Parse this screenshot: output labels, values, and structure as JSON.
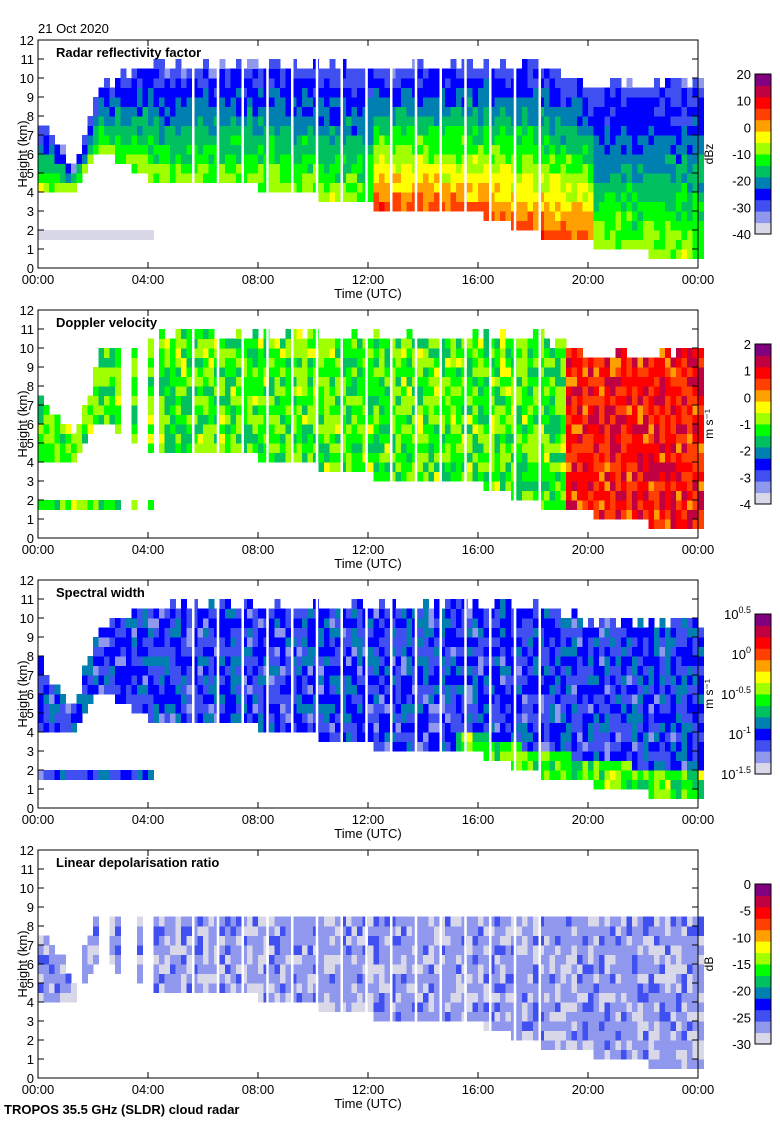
{
  "date_label": "21 Oct 2020",
  "footer": "TROPOS 35.5 GHz (SLDR) cloud radar",
  "chart_data": [
    {
      "type": "heatmap",
      "title": "Radar reflectivity factor",
      "xlabel": "Time (UTC)",
      "ylabel": "Height (km)",
      "xticks": [
        "00:00",
        "04:00",
        "08:00",
        "12:00",
        "16:00",
        "20:00",
        "00:00"
      ],
      "yticks": [
        "0",
        "1",
        "2",
        "3",
        "4",
        "5",
        "6",
        "7",
        "8",
        "9",
        "10",
        "11",
        "12"
      ],
      "ylim": [
        0,
        12
      ],
      "colorbar": {
        "label": "dBz",
        "range": [
          -40,
          20
        ],
        "ticks": [
          "20",
          "10",
          "0",
          "-10",
          "-20",
          "-30",
          "-40"
        ]
      },
      "typical_values": {
        "cloud_top": -30,
        "cloud_base_midday": 5
      }
    },
    {
      "type": "heatmap",
      "title": "Doppler velocity",
      "xlabel": "Time (UTC)",
      "ylabel": "Height (km)",
      "xticks": [
        "00:00",
        "04:00",
        "08:00",
        "12:00",
        "16:00",
        "20:00",
        "00:00"
      ],
      "yticks": [
        "0",
        "1",
        "2",
        "3",
        "4",
        "5",
        "6",
        "7",
        "8",
        "9",
        "10",
        "11",
        "12"
      ],
      "ylim": [
        0,
        12
      ],
      "colorbar": {
        "label": "m s⁻¹",
        "range": [
          -4,
          2
        ],
        "ticks": [
          "2",
          "1",
          "0",
          "-1",
          "-2",
          "-3",
          "-4"
        ]
      },
      "typical_values": {
        "before_19h": -1,
        "after_19h": 0.8
      }
    },
    {
      "type": "heatmap",
      "title": "Spectral width",
      "xlabel": "Time (UTC)",
      "ylabel": "Height (km)",
      "xticks": [
        "00:00",
        "04:00",
        "08:00",
        "12:00",
        "16:00",
        "20:00",
        "00:00"
      ],
      "yticks": [
        "0",
        "1",
        "2",
        "3",
        "4",
        "5",
        "6",
        "7",
        "8",
        "9",
        "10",
        "11",
        "12"
      ],
      "ylim": [
        0,
        12
      ],
      "colorbar": {
        "label": "m s⁻¹",
        "scale": "log",
        "range": [
          -1.5,
          0.5
        ],
        "ticks": [
          "10^0.5",
          "10^0",
          "10^-0.5",
          "10^-1",
          "10^-1.5"
        ]
      },
      "typical_values": {
        "cloud": 0.1
      }
    },
    {
      "type": "heatmap",
      "title": "Linear depolarisation ratio",
      "xlabel": "Time (UTC)",
      "ylabel": "Height (km)",
      "xticks": [
        "00:00",
        "04:00",
        "08:00",
        "12:00",
        "16:00",
        "20:00",
        "00:00"
      ],
      "yticks": [
        "0",
        "1",
        "2",
        "3",
        "4",
        "5",
        "6",
        "7",
        "8",
        "9",
        "10",
        "11",
        "12"
      ],
      "ylim": [
        0,
        12
      ],
      "colorbar": {
        "label": "dB",
        "range": [
          -30,
          0
        ],
        "ticks": [
          "0",
          "-5",
          "-10",
          "-15",
          "-20",
          "-25",
          "-30"
        ]
      },
      "typical_values": {
        "cloud": -27
      }
    }
  ],
  "cloud_outline": {
    "time_h": [
      0,
      1.2,
      2.2,
      4.3,
      8,
      12,
      16,
      18,
      20,
      22,
      24
    ],
    "base_km": [
      4.0,
      3.9,
      6.0,
      4.2,
      4.0,
      3.0,
      2.5,
      1.5,
      1.0,
      0.5,
      0.5
    ],
    "top_km": [
      7.3,
      5.0,
      9.5,
      10.5,
      10.5,
      10.3,
      10.5,
      10.5,
      9.5,
      9.5,
      9.5
    ]
  }
}
